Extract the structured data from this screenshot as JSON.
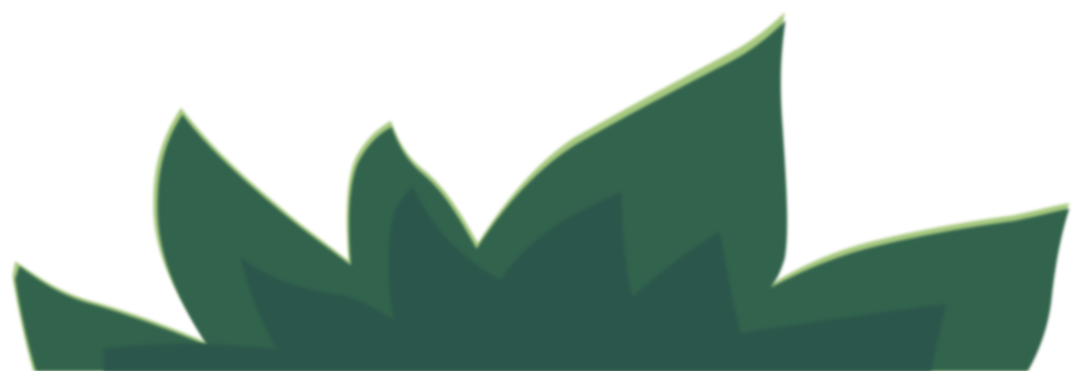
{
  "illustration": {
    "subject": "bush-foliage",
    "colors": {
      "background": "#ffffff",
      "highlight": "#a7c97f",
      "leaf_mid": "#33634e",
      "leaf_dark": "#2a574c"
    }
  }
}
